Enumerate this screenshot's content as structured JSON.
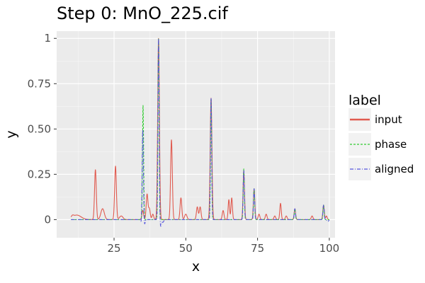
{
  "chart_data": {
    "type": "line",
    "title": "Step 0: MnO_225.cif",
    "xlabel": "x",
    "ylabel": "y",
    "xlim": [
      5,
      102
    ],
    "ylim": [
      -0.1,
      1.04
    ],
    "xticks": [
      25,
      50,
      75,
      100
    ],
    "yticks": [
      0,
      0.25,
      0.5,
      0.75,
      1
    ],
    "xtick_labels": [
      "25",
      "50",
      "75",
      "100"
    ],
    "ytick_labels": [
      "0",
      "0.25",
      "0.50",
      "0.75",
      "1"
    ],
    "grid": true,
    "legend": {
      "title": "label",
      "placement": "right",
      "entries": [
        "input",
        "phase",
        "aligned"
      ]
    },
    "series": [
      {
        "name": "input",
        "color": "#e05a4f",
        "style": "solid",
        "peaks": [
          {
            "x": 10.5,
            "y": 0.01,
            "w": 0.4
          },
          {
            "x": 12,
            "y": 0.025,
            "w": 1.5
          },
          {
            "x": 18.5,
            "y": 0.275,
            "w": 0.3
          },
          {
            "x": 21,
            "y": 0.06,
            "w": 0.6
          },
          {
            "x": 25.5,
            "y": 0.295,
            "w": 0.3
          },
          {
            "x": 27.5,
            "y": 0.02,
            "w": 0.6
          },
          {
            "x": 35,
            "y": 0.05,
            "w": 0.3
          },
          {
            "x": 36.5,
            "y": 0.14,
            "w": 0.3
          },
          {
            "x": 37.3,
            "y": 0.06,
            "w": 0.3
          },
          {
            "x": 38.5,
            "y": 0.03,
            "w": 0.3
          },
          {
            "x": 40.5,
            "y": 1.0,
            "w": 0.3
          },
          {
            "x": 45,
            "y": 0.44,
            "w": 0.3
          },
          {
            "x": 48.3,
            "y": 0.12,
            "w": 0.3
          },
          {
            "x": 50,
            "y": 0.03,
            "w": 0.4
          },
          {
            "x": 54,
            "y": 0.07,
            "w": 0.3
          },
          {
            "x": 55,
            "y": 0.07,
            "w": 0.3
          },
          {
            "x": 58.8,
            "y": 0.67,
            "w": 0.3
          },
          {
            "x": 63,
            "y": 0.05,
            "w": 0.3
          },
          {
            "x": 65,
            "y": 0.11,
            "w": 0.25
          },
          {
            "x": 66,
            "y": 0.12,
            "w": 0.25
          },
          {
            "x": 70.2,
            "y": 0.27,
            "w": 0.25
          },
          {
            "x": 73.8,
            "y": 0.17,
            "w": 0.25
          },
          {
            "x": 75.5,
            "y": 0.03,
            "w": 0.3
          },
          {
            "x": 78,
            "y": 0.03,
            "w": 0.3
          },
          {
            "x": 81,
            "y": 0.02,
            "w": 0.3
          },
          {
            "x": 83,
            "y": 0.09,
            "w": 0.25
          },
          {
            "x": 85,
            "y": 0.02,
            "w": 0.3
          },
          {
            "x": 88,
            "y": 0.06,
            "w": 0.25
          },
          {
            "x": 94,
            "y": 0.02,
            "w": 0.3
          },
          {
            "x": 98,
            "y": 0.08,
            "w": 0.25
          },
          {
            "x": 99,
            "y": 0.02,
            "w": 0.25
          }
        ],
        "dips": []
      },
      {
        "name": "phase",
        "color": "#33cc33",
        "style": "dashed",
        "peaks": [
          {
            "x": 35.1,
            "y": 0.63,
            "w": 0.2
          },
          {
            "x": 40.5,
            "y": 1.0,
            "w": 0.2
          },
          {
            "x": 58.8,
            "y": 0.67,
            "w": 0.2
          },
          {
            "x": 70.2,
            "y": 0.28,
            "w": 0.2
          },
          {
            "x": 73.8,
            "y": 0.17,
            "w": 0.2
          },
          {
            "x": 88,
            "y": 0.06,
            "w": 0.2
          },
          {
            "x": 98,
            "y": 0.08,
            "w": 0.2
          }
        ],
        "dips": []
      },
      {
        "name": "aligned",
        "color": "#5555dd",
        "style": "dashdot",
        "peaks": [
          {
            "x": 35,
            "y": 0.5,
            "w": 0.22
          },
          {
            "x": 40.5,
            "y": 1.0,
            "w": 0.22
          },
          {
            "x": 58.8,
            "y": 0.67,
            "w": 0.22
          },
          {
            "x": 70.2,
            "y": 0.27,
            "w": 0.22
          },
          {
            "x": 73.8,
            "y": 0.17,
            "w": 0.22
          },
          {
            "x": 88,
            "y": 0.06,
            "w": 0.22
          },
          {
            "x": 98,
            "y": 0.08,
            "w": 0.22
          }
        ],
        "dips": [
          {
            "x": 34.6,
            "y": -0.035,
            "w": 0.2
          },
          {
            "x": 35.6,
            "y": -0.03,
            "w": 0.2
          },
          {
            "x": 41.2,
            "y": -0.04,
            "w": 0.25
          },
          {
            "x": 42,
            "y": -0.015,
            "w": 0.3
          },
          {
            "x": 99.5,
            "y": -0.01,
            "w": 0.3
          }
        ]
      }
    ]
  }
}
